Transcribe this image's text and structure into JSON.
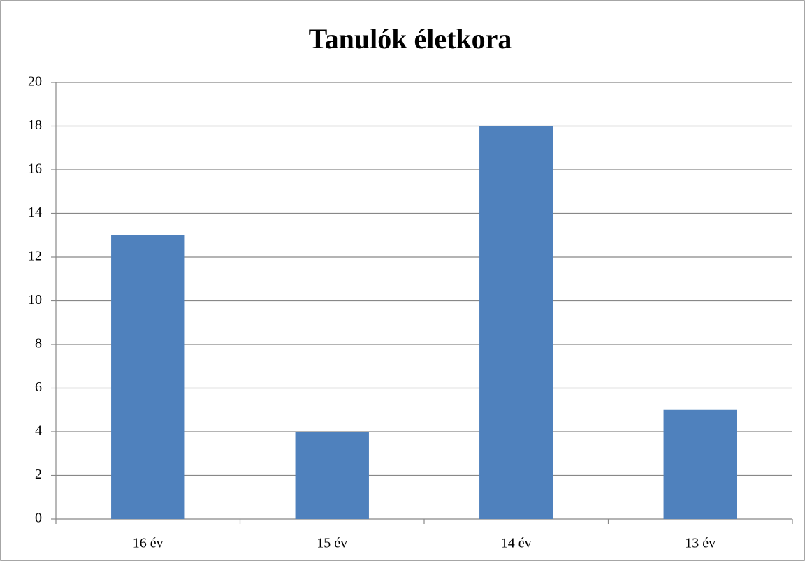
{
  "chart_data": {
    "type": "bar",
    "title": "Tanulók életkora",
    "categories": [
      "16 év",
      "15 év",
      "14 év",
      "13 év"
    ],
    "values": [
      13,
      4,
      18,
      5
    ],
    "color": "#4f81bd",
    "ylim": [
      0,
      20
    ],
    "yticks": [
      0,
      2,
      4,
      6,
      8,
      10,
      12,
      14,
      16,
      18,
      20
    ],
    "grid": true
  }
}
